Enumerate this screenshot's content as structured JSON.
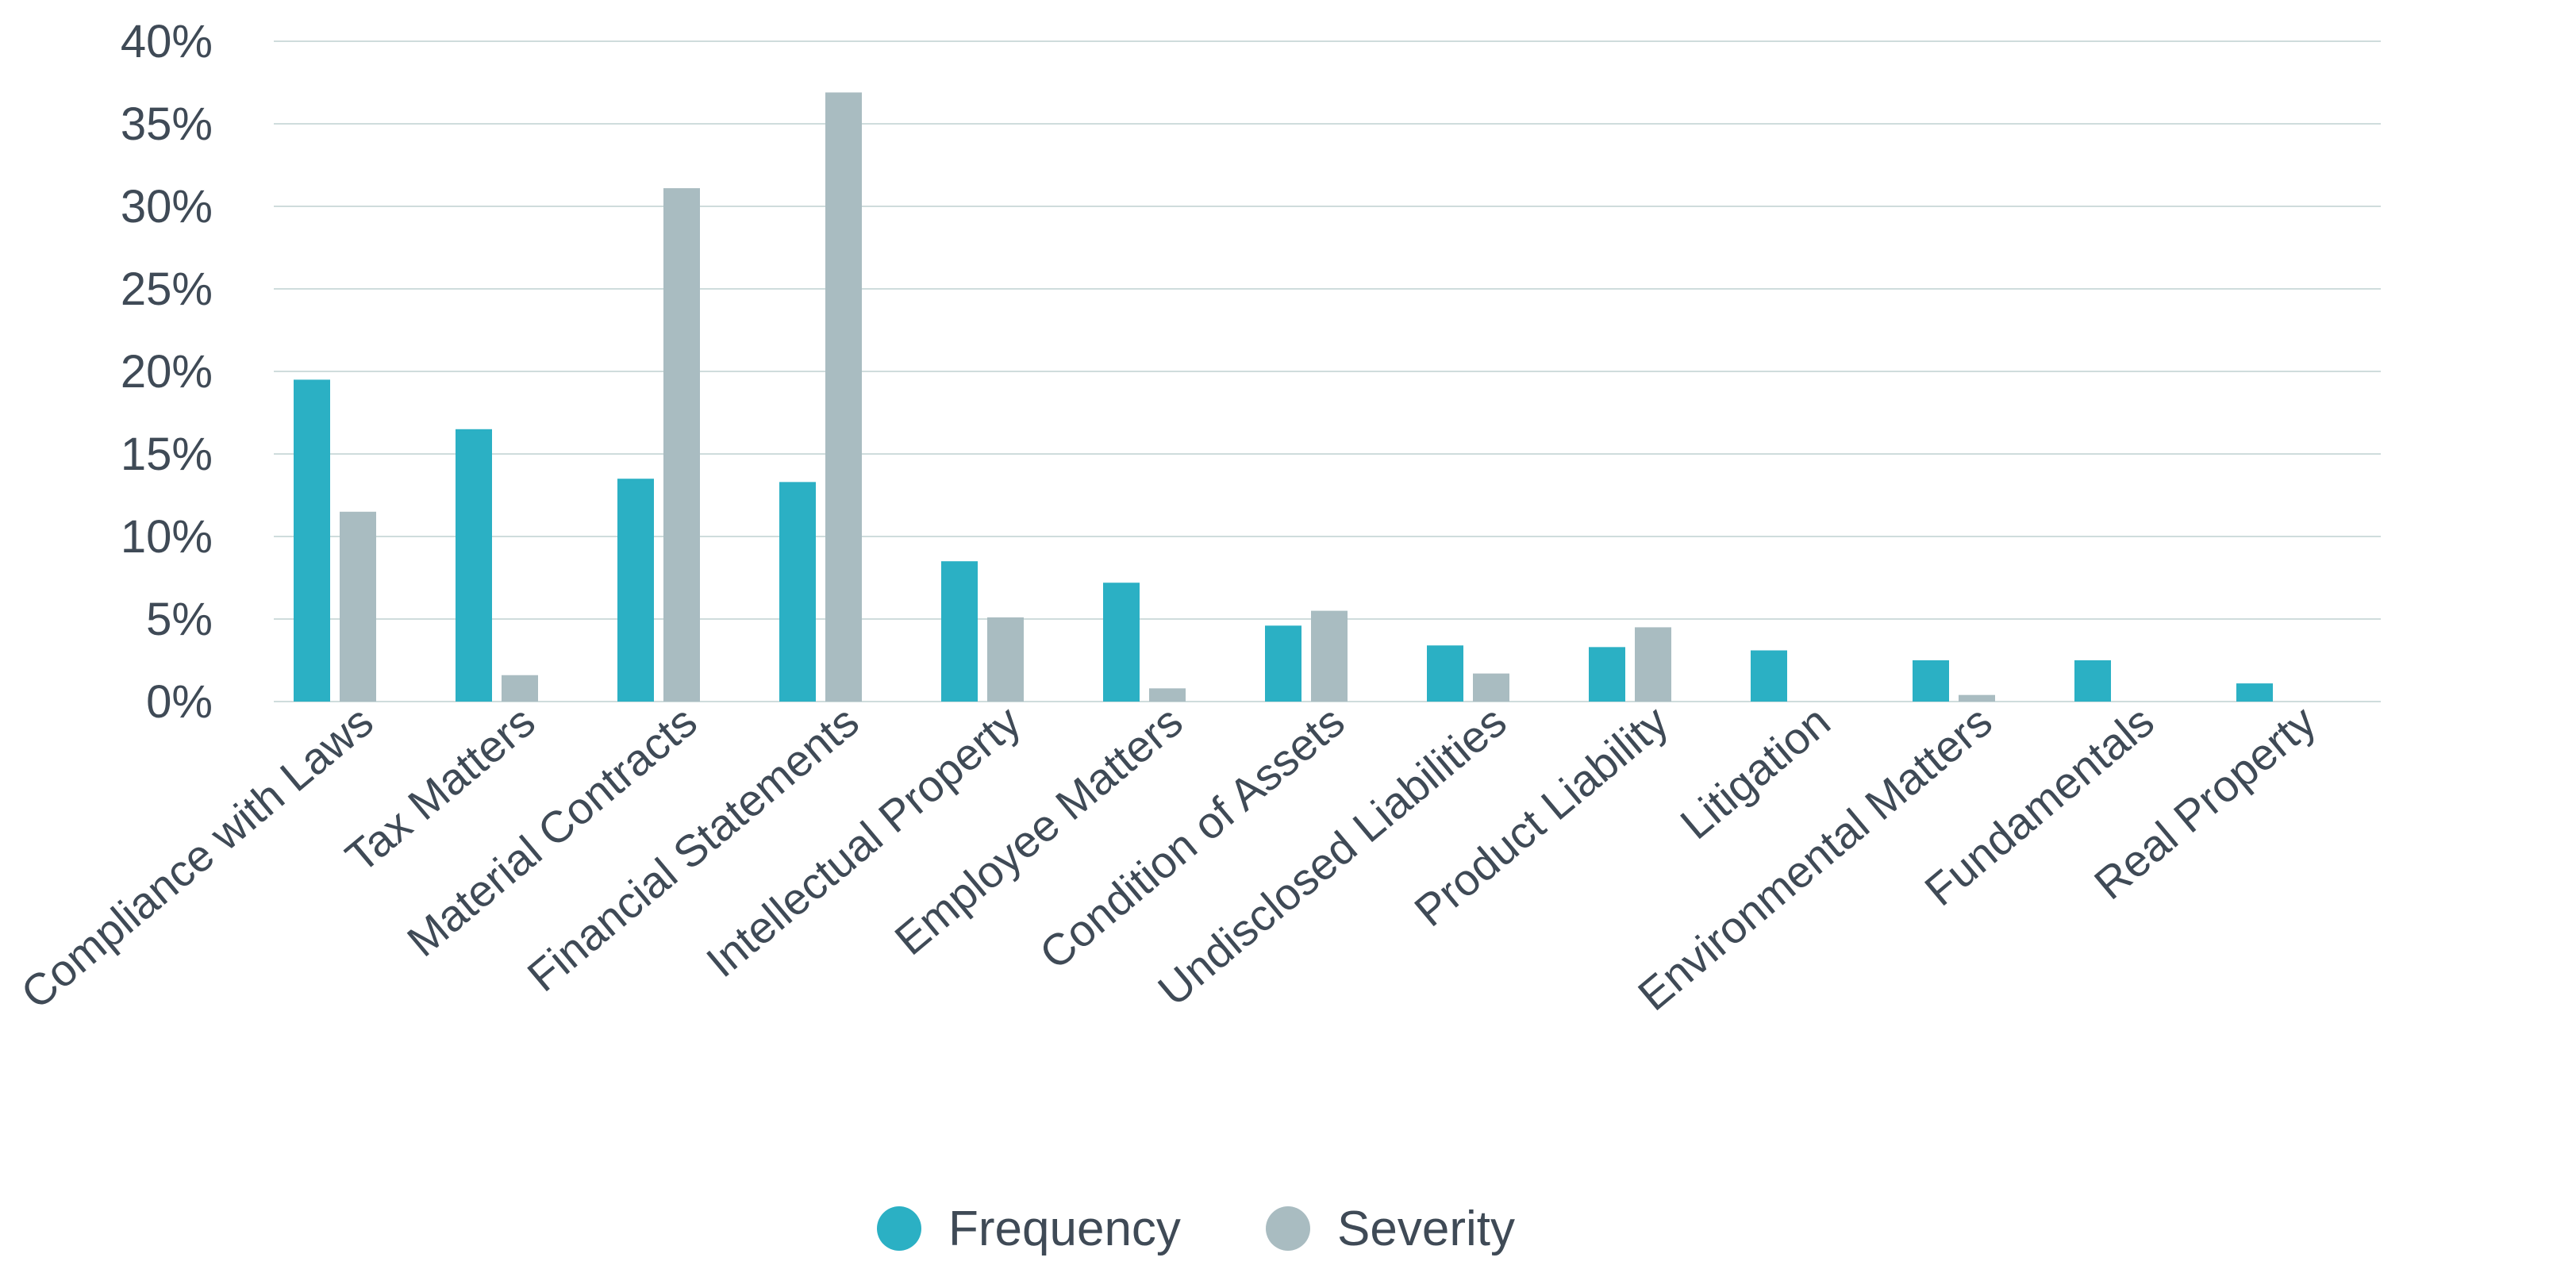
{
  "chart_data": {
    "type": "bar",
    "title": "",
    "xlabel": "",
    "ylabel": "",
    "ylim": [
      0,
      40
    ],
    "y_ticks": [
      "0%",
      "5%",
      "10%",
      "15%",
      "20%",
      "25%",
      "30%",
      "35%",
      "40%"
    ],
    "y_tick_values": [
      0,
      5,
      10,
      15,
      20,
      25,
      30,
      35,
      40
    ],
    "grid": true,
    "legend_position": "bottom-center",
    "categories": [
      "Compliance with Laws",
      "Tax Matters",
      "Material Contracts",
      "Financial Statements",
      "Intellectual Property",
      "Employee Matters",
      "Condition of Assets",
      "Undisclosed Liabilities",
      "Product Liability",
      "Litigation",
      "Environmental Matters",
      "Fundamentals",
      "Real Property"
    ],
    "series": [
      {
        "name": "Frequency",
        "color": "#2bb0c4",
        "values": [
          19.5,
          16.5,
          13.5,
          13.3,
          8.5,
          7.2,
          4.6,
          3.4,
          3.3,
          3.1,
          2.5,
          2.5,
          1.1
        ]
      },
      {
        "name": "Severity",
        "color": "#a9bcc1",
        "values": [
          11.5,
          1.6,
          31.1,
          36.9,
          5.1,
          0.8,
          5.5,
          1.7,
          4.5,
          0,
          0.4,
          0,
          0
        ]
      }
    ],
    "colors": {
      "grid": "#cfdcdc",
      "text": "#3f4a56"
    }
  }
}
